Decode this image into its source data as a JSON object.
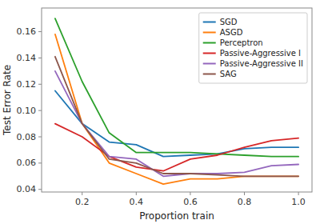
{
  "chart_data": {
    "type": "line",
    "x": [
      0.1,
      0.2,
      0.3,
      0.4,
      0.5,
      0.6,
      0.7,
      0.8,
      0.9,
      1.0
    ],
    "series": [
      {
        "name": "SGD",
        "color": "#1f77b4",
        "values": [
          0.115,
          0.09,
          0.076,
          0.074,
          0.065,
          0.066,
          0.067,
          0.071,
          0.072,
          0.072
        ]
      },
      {
        "name": "ASGD",
        "color": "#ff7f0e",
        "values": [
          0.158,
          0.09,
          0.06,
          0.052,
          0.044,
          0.048,
          0.048,
          0.05,
          0.05,
          0.05
        ]
      },
      {
        "name": "Perceptron",
        "color": "#2ca02c",
        "values": [
          0.17,
          0.122,
          0.083,
          0.068,
          0.068,
          0.068,
          0.067,
          0.066,
          0.065,
          0.065
        ]
      },
      {
        "name": "Passive-Aggressive I",
        "color": "#d62728",
        "values": [
          0.09,
          0.08,
          0.065,
          0.057,
          0.054,
          0.063,
          0.066,
          0.072,
          0.077,
          0.079
        ]
      },
      {
        "name": "Passive-Aggressive II",
        "color": "#9467bd",
        "values": [
          0.13,
          0.09,
          0.065,
          0.063,
          0.05,
          0.052,
          0.052,
          0.053,
          0.058,
          0.059
        ]
      },
      {
        "name": "SAG",
        "color": "#8c564b",
        "values": [
          0.141,
          0.09,
          0.063,
          0.06,
          0.052,
          0.052,
          0.051,
          0.05,
          0.05,
          0.05
        ]
      }
    ],
    "x_label": "Proportion train",
    "y_label": "Test Error Rate",
    "xlim": [
      0.05,
      1.05
    ],
    "ylim": [
      0.038,
      0.178
    ],
    "xticks": [
      0.2,
      0.4,
      0.6,
      0.8,
      {
        "value": 1.0,
        "label": "1.0"
      }
    ],
    "yticks": [
      0.04,
      0.06,
      0.08,
      {
        "value": 0.1,
        "label": "0.10"
      },
      0.12,
      0.14,
      0.16
    ],
    "grid": false,
    "legend": "upper right"
  }
}
